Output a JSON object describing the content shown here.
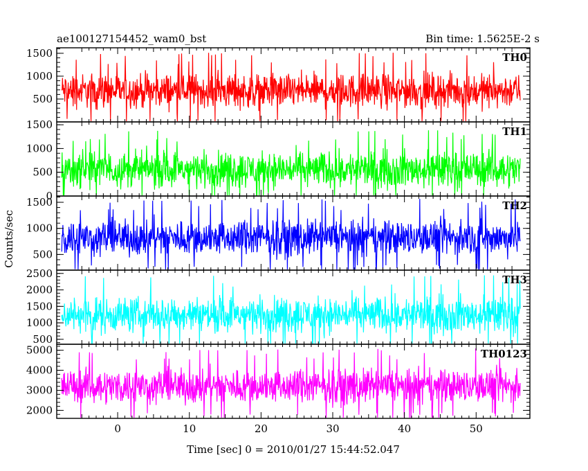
{
  "header": {
    "title_left": "ae100127154452_wam0_bst",
    "title_right": "Bin time: 1.5625E-2 s"
  },
  "chart_data": {
    "type": "line",
    "title": "ae100127154452_wam0_bst",
    "subtitle": "Bin time: 1.5625E-2 s",
    "xlabel": "Time [sec] 0 = 2010/01/27 15:44:52.047",
    "ylabel": "Counts/sec",
    "xlim": [
      -8.5,
      57.5
    ],
    "x_range_data": [
      -7.8,
      56.2
    ],
    "x_ticks": [
      "0",
      "10",
      "20",
      "30",
      "40",
      "50"
    ],
    "x_tick_values": [
      0,
      10,
      20,
      30,
      40,
      50
    ],
    "grid": false,
    "legend": "none",
    "series": [
      {
        "name": "TH0",
        "color": "#ff0000",
        "ylim": [
          0,
          1620
        ],
        "y_ticks": [
          "500",
          "1000",
          "1500"
        ],
        "y_tick_values": [
          500,
          1000,
          1500
        ],
        "mean": 680,
        "low": 150,
        "high": 1600
      },
      {
        "name": "TH1",
        "color": "#00ff00",
        "ylim": [
          0,
          1560
        ],
        "y_ticks": [
          "0",
          "500",
          "1000",
          "1500"
        ],
        "y_tick_values": [
          0,
          500,
          1000,
          1500
        ],
        "mean": 560,
        "low": 50,
        "high": 1500
      },
      {
        "name": "TH2",
        "color": "#0000ff",
        "ylim": [
          200,
          1620
        ],
        "y_ticks": [
          "500",
          "1000",
          "1500"
        ],
        "y_tick_values": [
          500,
          1000,
          1500
        ],
        "mean": 820,
        "low": 300,
        "high": 1600
      },
      {
        "name": "TH3",
        "color": "#00ffff",
        "ylim": [
          350,
          2600
        ],
        "y_ticks": [
          "500",
          "1000",
          "1500",
          "2000",
          "2500"
        ],
        "y_tick_values": [
          500,
          1000,
          1500,
          2000,
          2500
        ],
        "mean": 1250,
        "low": 450,
        "high": 2550
      },
      {
        "name": "TH0123",
        "color": "#ff00ff",
        "ylim": [
          1600,
          5300
        ],
        "y_ticks": [
          "2000",
          "3000",
          "4000",
          "5000"
        ],
        "y_tick_values": [
          2000,
          3000,
          4000,
          5000
        ],
        "mean": 3200,
        "low": 1800,
        "high": 5100
      }
    ]
  }
}
